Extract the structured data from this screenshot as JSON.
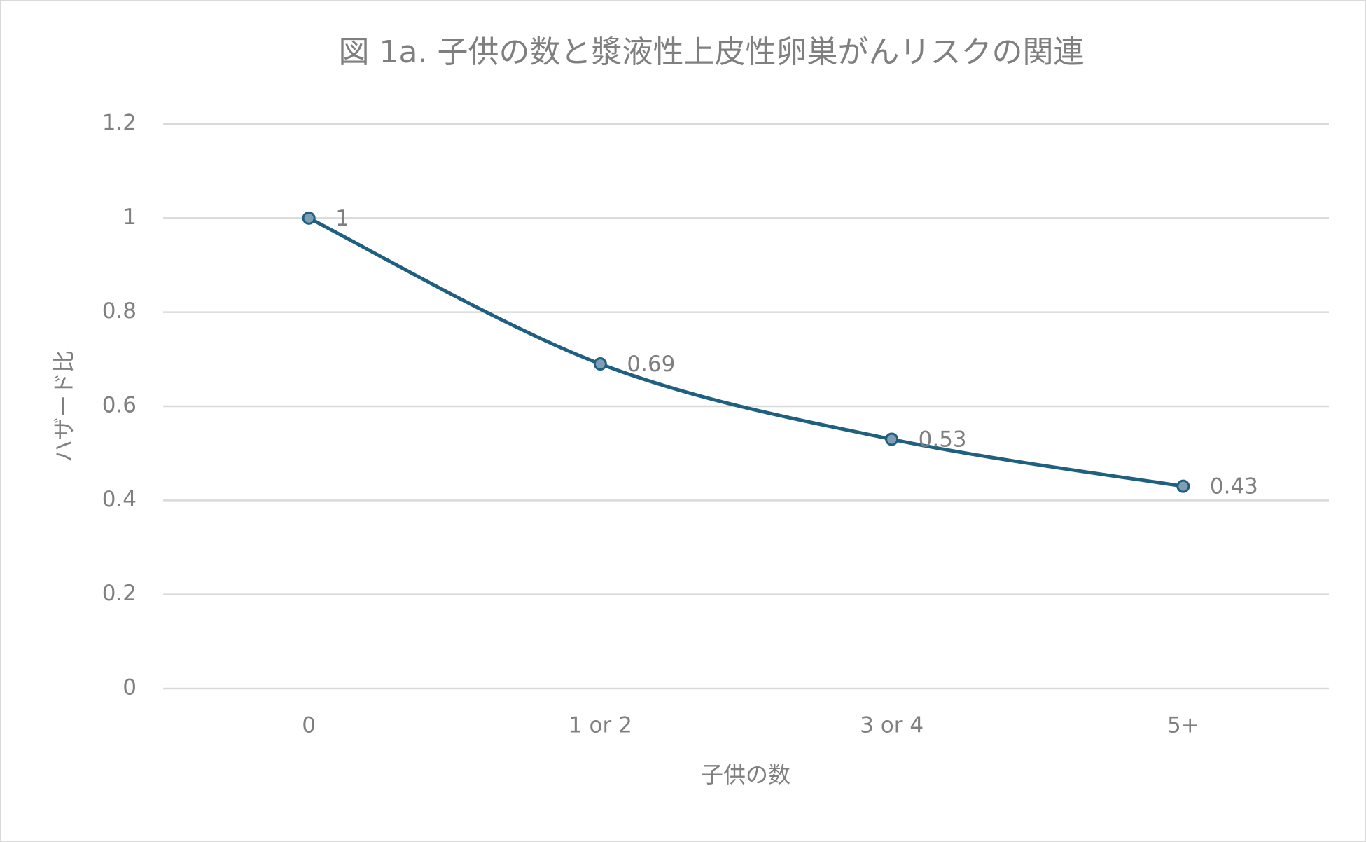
{
  "chart_data": {
    "type": "line",
    "title": "図 1a. 子供の数と漿液性上皮性卵巣がんリスクの関連",
    "x_label": "子供の数",
    "y_label": "ハザード比",
    "categories": [
      "0",
      "1 or 2",
      "3 or 4",
      "5+"
    ],
    "series": [
      {
        "name": "ハザード比",
        "color": "#1f5f80",
        "values": [
          1,
          0.69,
          0.53,
          0.43
        ]
      }
    ],
    "ylim": [
      0,
      1.2
    ],
    "yticks": [
      0,
      0.2,
      0.4,
      0.6,
      0.8,
      1,
      1.2
    ],
    "grid": true,
    "smooth": true,
    "data_labels": true
  }
}
